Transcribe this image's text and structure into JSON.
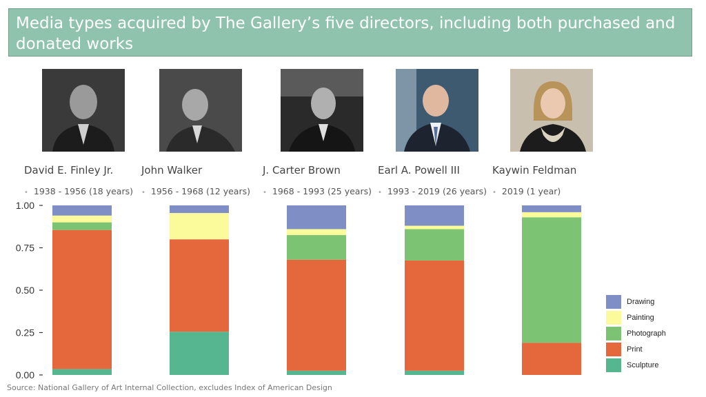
{
  "title": "Media types acquired by The Gallery’s five directors, including both purchased and donated works",
  "source": "Source: National Gallery of Art Internal Collection, excludes Index of American Design",
  "directors": [
    {
      "name": "David E. Finley Jr.",
      "years": "1938 - 1956 (18 years)"
    },
    {
      "name": "John Walker",
      "years": "1956 - 1968 (12 years)"
    },
    {
      "name": "J. Carter Brown",
      "years": "1968 - 1993 (25 years)"
    },
    {
      "name": "Earl A. Powell III",
      "years": "1993 - 2019 (26 years)"
    },
    {
      "name": "Kaywin Feldman",
      "years": "2019 (1 year)"
    }
  ],
  "legend": [
    "Drawing",
    "Painting",
    "Photograph",
    "Print",
    "Sculpture"
  ],
  "colors": {
    "Drawing": "#7f8fc6",
    "Painting": "#fbfb9b",
    "Photograph": "#7cc474",
    "Print": "#e5683c",
    "Sculpture": "#55b690",
    "title_bg": "#8fc3ae"
  },
  "chart_data": {
    "type": "bar",
    "stacked": true,
    "categories": [
      "David E. Finley Jr.",
      "John Walker",
      "J. Carter Brown",
      "Earl A. Powell III",
      "Kaywin Feldman"
    ],
    "series": [
      {
        "name": "Sculpture",
        "values": [
          0.035,
          0.255,
          0.025,
          0.025,
          0.0
        ]
      },
      {
        "name": "Print",
        "values": [
          0.82,
          0.545,
          0.655,
          0.65,
          0.19
        ]
      },
      {
        "name": "Photograph",
        "values": [
          0.045,
          0.0,
          0.145,
          0.185,
          0.74
        ]
      },
      {
        "name": "Painting",
        "values": [
          0.04,
          0.155,
          0.035,
          0.02,
          0.03
        ]
      },
      {
        "name": "Drawing",
        "values": [
          0.06,
          0.045,
          0.14,
          0.12,
          0.04
        ]
      }
    ],
    "ylim": [
      0,
      1
    ],
    "yticks": [
      "0.00",
      "0.25",
      "0.50",
      "0.75",
      "1.00"
    ],
    "grid": false,
    "legend_position": "right"
  }
}
